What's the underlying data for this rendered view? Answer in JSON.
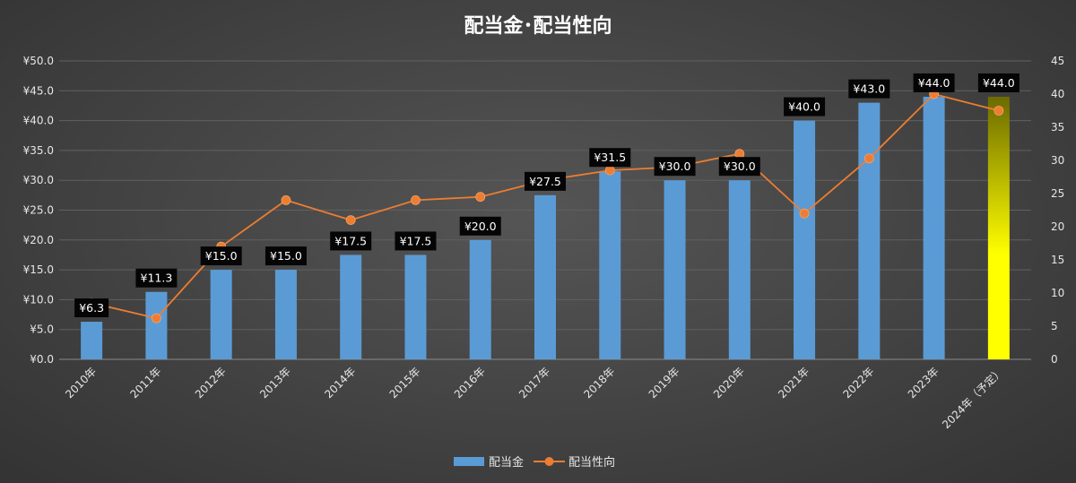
{
  "chart_data": {
    "type": "bar+line",
    "title": "配当金･配当性向",
    "categories": [
      "2010年",
      "2011年",
      "2012年",
      "2013年",
      "2014年",
      "2015年",
      "2016年",
      "2017年",
      "2018年",
      "2019年",
      "2020年",
      "2021年",
      "2022年",
      "2023年",
      "2024年（予定）"
    ],
    "series": [
      {
        "name": "配当金",
        "type": "bar",
        "axis": "left",
        "values": [
          6.3,
          11.3,
          15.0,
          15.0,
          17.5,
          17.5,
          20.0,
          27.5,
          31.5,
          30.0,
          30.0,
          40.0,
          43.0,
          44.0,
          44.0
        ],
        "labels": [
          "¥6.3",
          "¥11.3",
          "¥15.0",
          "¥15.0",
          "¥17.5",
          "¥17.5",
          "¥20.0",
          "¥27.5",
          "¥31.5",
          "¥30.0",
          "¥30.0",
          "¥40.0",
          "¥43.0",
          "¥44.0",
          "¥44.0"
        ],
        "color": "#5b9bd5",
        "highlight_color": "#ffff00"
      },
      {
        "name": "配当性向",
        "type": "line",
        "axis": "right",
        "values": [
          8.5,
          6.2,
          17.0,
          24.0,
          21.0,
          24.0,
          24.5,
          27.0,
          28.5,
          29.0,
          31.0,
          22.0,
          30.3,
          40.0,
          37.5
        ],
        "color": "#ed7d31"
      }
    ],
    "y_left": {
      "min": 0,
      "max": 50,
      "step": 5,
      "ticks": [
        "¥0.0",
        "¥5.0",
        "¥10.0",
        "¥15.0",
        "¥20.0",
        "¥25.0",
        "¥30.0",
        "¥35.0",
        "¥40.0",
        "¥45.0",
        "¥50.0"
      ]
    },
    "y_right": {
      "min": 0,
      "max": 45,
      "step": 5,
      "ticks": [
        "0",
        "5",
        "10",
        "15",
        "20",
        "25",
        "30",
        "35",
        "40",
        "45"
      ]
    },
    "grid": true,
    "legend_position": "bottom"
  }
}
